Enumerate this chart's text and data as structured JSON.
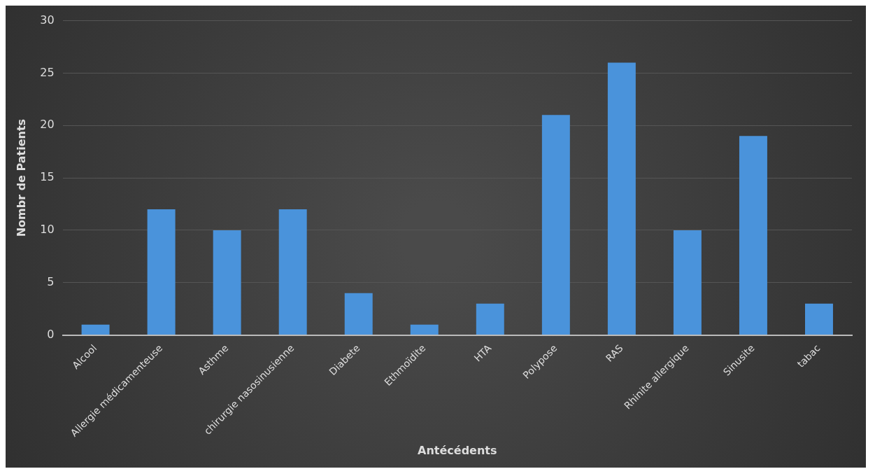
{
  "chart_data": {
    "type": "bar",
    "xlabel": "Antécédents",
    "ylabel": "Nombr de Patients",
    "categories": [
      "Alcool",
      "Allergie médicamenteuse",
      "Asthme",
      "chirurgie nasosinusienne",
      "Diabete",
      "Ethmoïdite",
      "HTA",
      "Polypose",
      "RAS",
      "Rhinite allergique",
      "Sinusite",
      "tabac"
    ],
    "values": [
      1,
      12,
      10,
      12,
      4,
      1,
      3,
      21,
      26,
      10,
      19,
      3
    ],
    "color": "#4a93db",
    "ylim": [
      0,
      30
    ],
    "yticks": [
      0,
      5,
      10,
      15,
      20,
      25,
      30
    ],
    "grid": "y",
    "legend": false
  }
}
